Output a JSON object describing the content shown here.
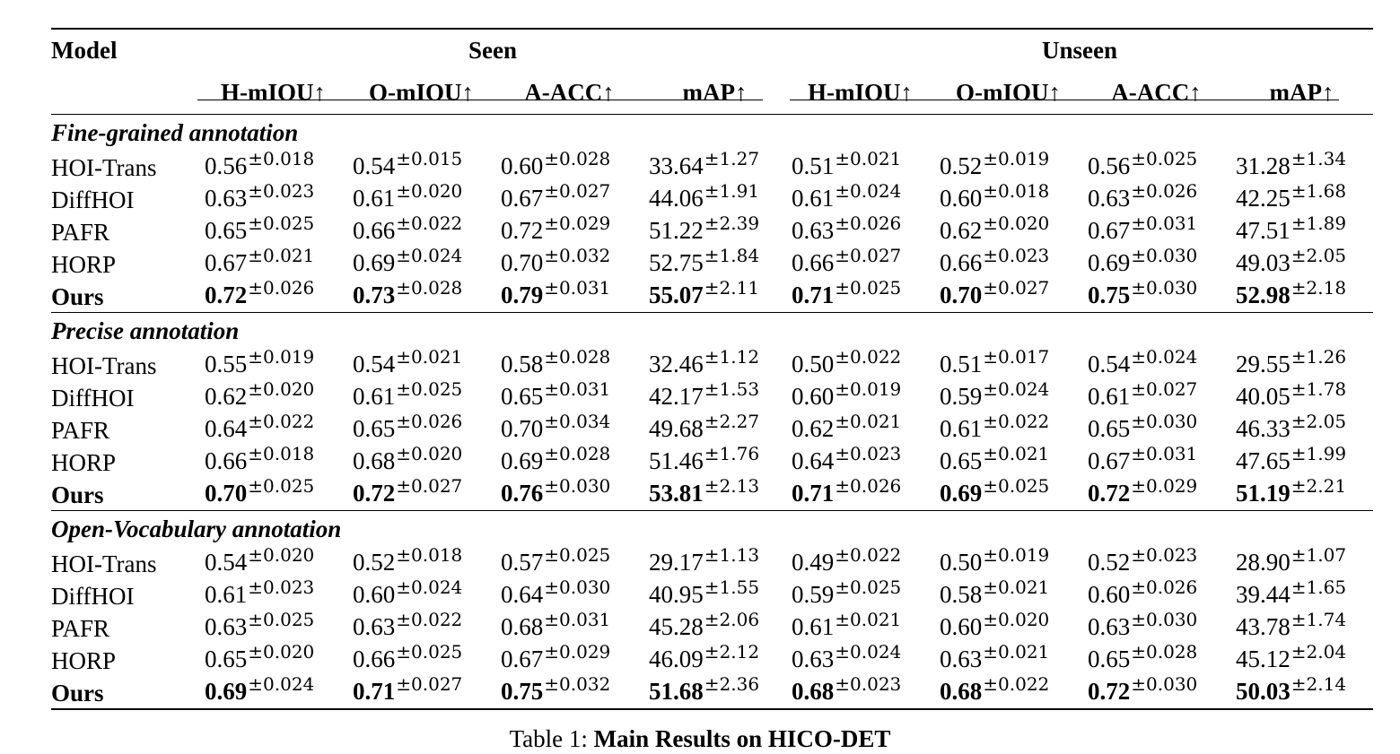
{
  "header": {
    "model": "Model",
    "seen": "Seen",
    "unseen": "Unseen",
    "metrics": [
      "H-mIOU↑",
      "O-mIOU↑",
      "A-ACC↑",
      "mAP↑"
    ]
  },
  "sections": [
    {
      "title": "Fine-grained annotation",
      "rows": [
        {
          "model": "HOI-Trans",
          "best": false,
          "cells": [
            [
              "0.56",
              "±0.018"
            ],
            [
              "0.54",
              "±0.015"
            ],
            [
              "0.60",
              "±0.028"
            ],
            [
              "33.64",
              "±1.27"
            ],
            [
              "0.51",
              "±0.021"
            ],
            [
              "0.52",
              "±0.019"
            ],
            [
              "0.56",
              "±0.025"
            ],
            [
              "31.28",
              "±1.34"
            ]
          ]
        },
        {
          "model": "DiffHOI",
          "best": false,
          "cells": [
            [
              "0.63",
              "±0.023"
            ],
            [
              "0.61",
              "±0.020"
            ],
            [
              "0.67",
              "±0.027"
            ],
            [
              "44.06",
              "±1.91"
            ],
            [
              "0.61",
              "±0.024"
            ],
            [
              "0.60",
              "±0.018"
            ],
            [
              "0.63",
              "±0.026"
            ],
            [
              "42.25",
              "±1.68"
            ]
          ]
        },
        {
          "model": "PAFR",
          "best": false,
          "cells": [
            [
              "0.65",
              "±0.025"
            ],
            [
              "0.66",
              "±0.022"
            ],
            [
              "0.72",
              "±0.029"
            ],
            [
              "51.22",
              "±2.39"
            ],
            [
              "0.63",
              "±0.026"
            ],
            [
              "0.62",
              "±0.020"
            ],
            [
              "0.67",
              "±0.031"
            ],
            [
              "47.51",
              "±1.89"
            ]
          ]
        },
        {
          "model": "HORP",
          "best": false,
          "cells": [
            [
              "0.67",
              "±0.021"
            ],
            [
              "0.69",
              "±0.024"
            ],
            [
              "0.70",
              "±0.032"
            ],
            [
              "52.75",
              "±1.84"
            ],
            [
              "0.66",
              "±0.027"
            ],
            [
              "0.66",
              "±0.023"
            ],
            [
              "0.69",
              "±0.030"
            ],
            [
              "49.03",
              "±2.05"
            ]
          ]
        },
        {
          "model": "Ours",
          "best": true,
          "cells": [
            [
              "0.72",
              "±0.026"
            ],
            [
              "0.73",
              "±0.028"
            ],
            [
              "0.79",
              "±0.031"
            ],
            [
              "55.07",
              "±2.11"
            ],
            [
              "0.71",
              "±0.025"
            ],
            [
              "0.70",
              "±0.027"
            ],
            [
              "0.75",
              "±0.030"
            ],
            [
              "52.98",
              "±2.18"
            ]
          ]
        }
      ]
    },
    {
      "title": "Precise annotation",
      "rows": [
        {
          "model": "HOI-Trans",
          "best": false,
          "cells": [
            [
              "0.55",
              "±0.019"
            ],
            [
              "0.54",
              "±0.021"
            ],
            [
              "0.58",
              "±0.028"
            ],
            [
              "32.46",
              "±1.12"
            ],
            [
              "0.50",
              "±0.022"
            ],
            [
              "0.51",
              "±0.017"
            ],
            [
              "0.54",
              "±0.024"
            ],
            [
              "29.55",
              "±1.26"
            ]
          ]
        },
        {
          "model": "DiffHOI",
          "best": false,
          "cells": [
            [
              "0.62",
              "±0.020"
            ],
            [
              "0.61",
              "±0.025"
            ],
            [
              "0.65",
              "±0.031"
            ],
            [
              "42.17",
              "±1.53"
            ],
            [
              "0.60",
              "±0.019"
            ],
            [
              "0.59",
              "±0.024"
            ],
            [
              "0.61",
              "±0.027"
            ],
            [
              "40.05",
              "±1.78"
            ]
          ]
        },
        {
          "model": "PAFR",
          "best": false,
          "cells": [
            [
              "0.64",
              "±0.022"
            ],
            [
              "0.65",
              "±0.026"
            ],
            [
              "0.70",
              "±0.034"
            ],
            [
              "49.68",
              "±2.27"
            ],
            [
              "0.62",
              "±0.021"
            ],
            [
              "0.61",
              "±0.022"
            ],
            [
              "0.65",
              "±0.030"
            ],
            [
              "46.33",
              "±2.05"
            ]
          ]
        },
        {
          "model": "HORP",
          "best": false,
          "cells": [
            [
              "0.66",
              "±0.018"
            ],
            [
              "0.68",
              "±0.020"
            ],
            [
              "0.69",
              "±0.028"
            ],
            [
              "51.46",
              "±1.76"
            ],
            [
              "0.64",
              "±0.023"
            ],
            [
              "0.65",
              "±0.021"
            ],
            [
              "0.67",
              "±0.031"
            ],
            [
              "47.65",
              "±1.99"
            ]
          ]
        },
        {
          "model": "Ours",
          "best": true,
          "cells": [
            [
              "0.70",
              "±0.025"
            ],
            [
              "0.72",
              "±0.027"
            ],
            [
              "0.76",
              "±0.030"
            ],
            [
              "53.81",
              "±2.13"
            ],
            [
              "0.71",
              "±0.026"
            ],
            [
              "0.69",
              "±0.025"
            ],
            [
              "0.72",
              "±0.029"
            ],
            [
              "51.19",
              "±2.21"
            ]
          ]
        }
      ]
    },
    {
      "title": "Open-Vocabulary annotation",
      "rows": [
        {
          "model": "HOI-Trans",
          "best": false,
          "cells": [
            [
              "0.54",
              "±0.020"
            ],
            [
              "0.52",
              "±0.018"
            ],
            [
              "0.57",
              "±0.025"
            ],
            [
              "29.17",
              "±1.13"
            ],
            [
              "0.49",
              "±0.022"
            ],
            [
              "0.50",
              "±0.019"
            ],
            [
              "0.52",
              "±0.023"
            ],
            [
              "28.90",
              "±1.07"
            ]
          ]
        },
        {
          "model": "DiffHOI",
          "best": false,
          "cells": [
            [
              "0.61",
              "±0.023"
            ],
            [
              "0.60",
              "±0.024"
            ],
            [
              "0.64",
              "±0.030"
            ],
            [
              "40.95",
              "±1.55"
            ],
            [
              "0.59",
              "±0.025"
            ],
            [
              "0.58",
              "±0.021"
            ],
            [
              "0.60",
              "±0.026"
            ],
            [
              "39.44",
              "±1.65"
            ]
          ]
        },
        {
          "model": "PAFR",
          "best": false,
          "cells": [
            [
              "0.63",
              "±0.025"
            ],
            [
              "0.63",
              "±0.022"
            ],
            [
              "0.68",
              "±0.031"
            ],
            [
              "45.28",
              "±2.06"
            ],
            [
              "0.61",
              "±0.021"
            ],
            [
              "0.60",
              "±0.020"
            ],
            [
              "0.63",
              "±0.030"
            ],
            [
              "43.78",
              "±1.74"
            ]
          ]
        },
        {
          "model": "HORP",
          "best": false,
          "cells": [
            [
              "0.65",
              "±0.020"
            ],
            [
              "0.66",
              "±0.025"
            ],
            [
              "0.67",
              "±0.029"
            ],
            [
              "46.09",
              "±2.12"
            ],
            [
              "0.63",
              "±0.024"
            ],
            [
              "0.63",
              "±0.021"
            ],
            [
              "0.65",
              "±0.028"
            ],
            [
              "45.12",
              "±2.04"
            ]
          ]
        },
        {
          "model": "Ours",
          "best": true,
          "cells": [
            [
              "0.69",
              "±0.024"
            ],
            [
              "0.71",
              "±0.027"
            ],
            [
              "0.75",
              "±0.032"
            ],
            [
              "51.68",
              "±2.36"
            ],
            [
              "0.68",
              "±0.023"
            ],
            [
              "0.68",
              "±0.022"
            ],
            [
              "0.72",
              "±0.030"
            ],
            [
              "50.03",
              "±2.14"
            ]
          ]
        }
      ]
    }
  ],
  "caption": {
    "prefix": "Table 1: ",
    "title": "Main Results on HICO-DET"
  }
}
